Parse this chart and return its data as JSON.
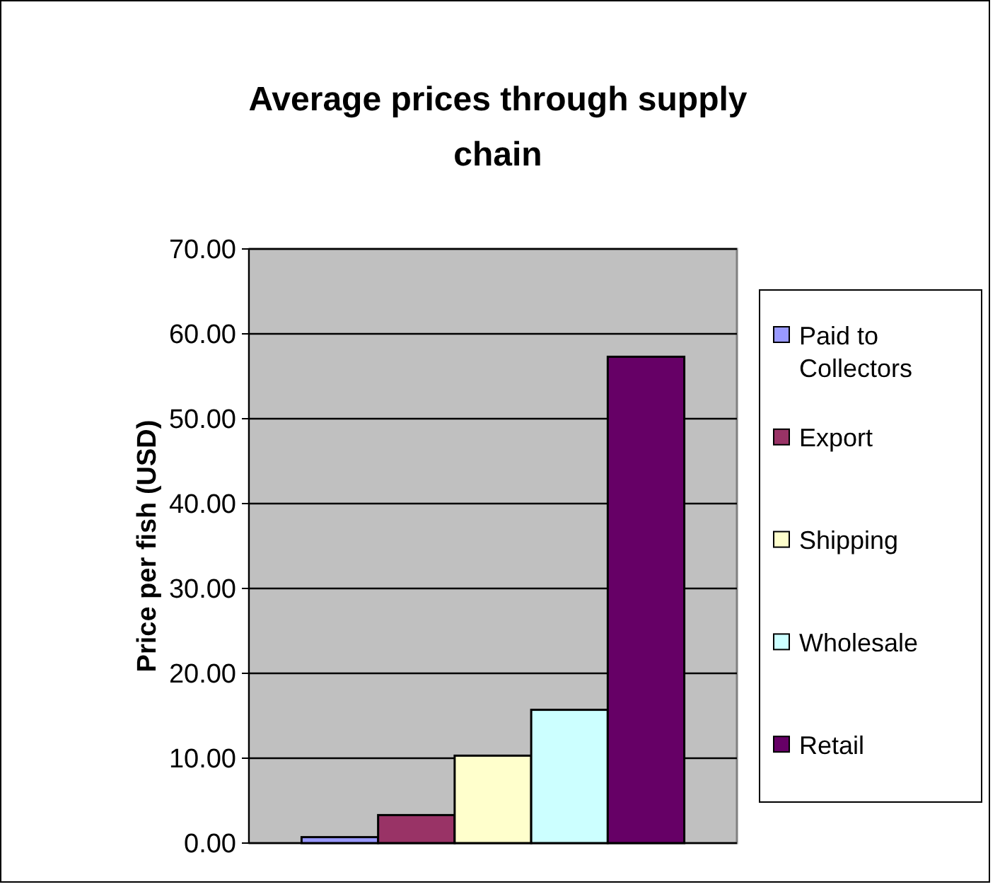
{
  "chart_data": {
    "type": "bar",
    "title": "Average prices through supply chain",
    "ylabel": "Price per fish (USD)",
    "categories": [
      null
    ],
    "series": [
      {
        "name": "Paid to Collectors",
        "color": "#9999ff",
        "values": [
          0.7
        ]
      },
      {
        "name": "Export",
        "color": "#993366",
        "values": [
          3.3
        ]
      },
      {
        "name": "Shipping",
        "color": "#ffffcc",
        "values": [
          10.3
        ]
      },
      {
        "name": "Wholesale",
        "color": "#ccffff",
        "values": [
          15.7
        ]
      },
      {
        "name": "Retail",
        "color": "#660066",
        "values": [
          57.3
        ]
      }
    ],
    "ylim": [
      0,
      70
    ],
    "yticks": [
      {
        "value": 0,
        "label": "0.00"
      },
      {
        "value": 10,
        "label": "10.00"
      },
      {
        "value": 20,
        "label": "20.00"
      },
      {
        "value": 30,
        "label": "30.00"
      },
      {
        "value": 40,
        "label": "40.00"
      },
      {
        "value": 50,
        "label": "50.00"
      },
      {
        "value": 60,
        "label": "60.00"
      },
      {
        "value": 70,
        "label": "70.00"
      }
    ],
    "grid": "y",
    "legend": "right"
  }
}
